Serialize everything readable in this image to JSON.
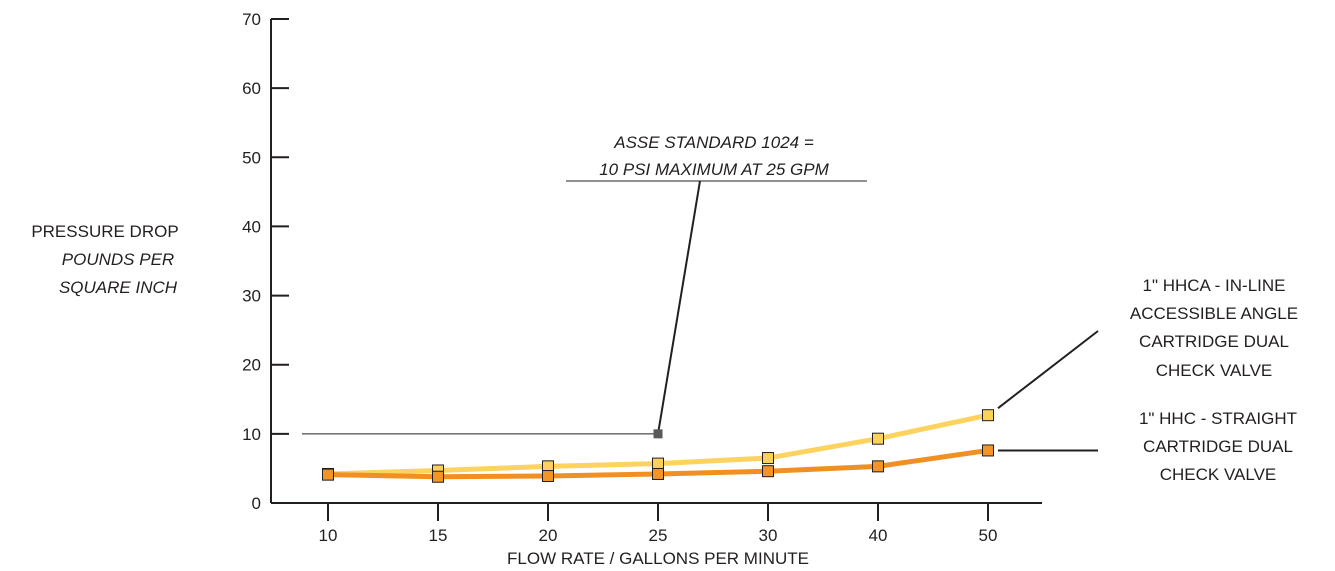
{
  "chart_data": {
    "type": "line",
    "categories": [
      "10",
      "15",
      "20",
      "25",
      "30",
      "40",
      "50"
    ],
    "ylim": [
      0,
      70
    ],
    "yticks": [
      0,
      10,
      20,
      30,
      40,
      50,
      60,
      70
    ],
    "ylabel": {
      "line1": "PRESSURE DROP",
      "line2": "POUNDS PER",
      "line3": "SQUARE INCH"
    },
    "xlabel": "FLOW RATE / GALLONS PER MINUTE",
    "grid": false,
    "series": [
      {
        "name": "1\" HHCA - IN-LINE ACCESSIBLE ANGLE CARTRIDGE DUAL CHECK VALVE",
        "label_lines": [
          "1\" HHCA - IN-LINE",
          "ACCESSIBLE ANGLE",
          "CARTRIDGE DUAL",
          "CHECK VALVE"
        ],
        "values": [
          4.2,
          4.7,
          5.3,
          5.7,
          6.5,
          9.3,
          12.7
        ],
        "color": "#fcd35f",
        "marker_fill": "#fbd15a"
      },
      {
        "name": "1\" HHC - STRAIGHT CARTRIDGE DUAL CHECK VALVE",
        "label_lines": [
          "1\" HHC - STRAIGHT",
          "CARTRIDGE DUAL",
          "CHECK VALVE"
        ],
        "values": [
          4.1,
          3.8,
          3.9,
          4.2,
          4.6,
          5.3,
          7.6
        ],
        "color": "#f18f22",
        "marker_fill": "#f29426"
      }
    ],
    "annotation": {
      "line1": "ASSE STANDARD 1024 =",
      "line2": "10 PSI MAXIMUM AT 25 GPM",
      "x": "25",
      "y": 10,
      "color": "#58595b"
    }
  }
}
